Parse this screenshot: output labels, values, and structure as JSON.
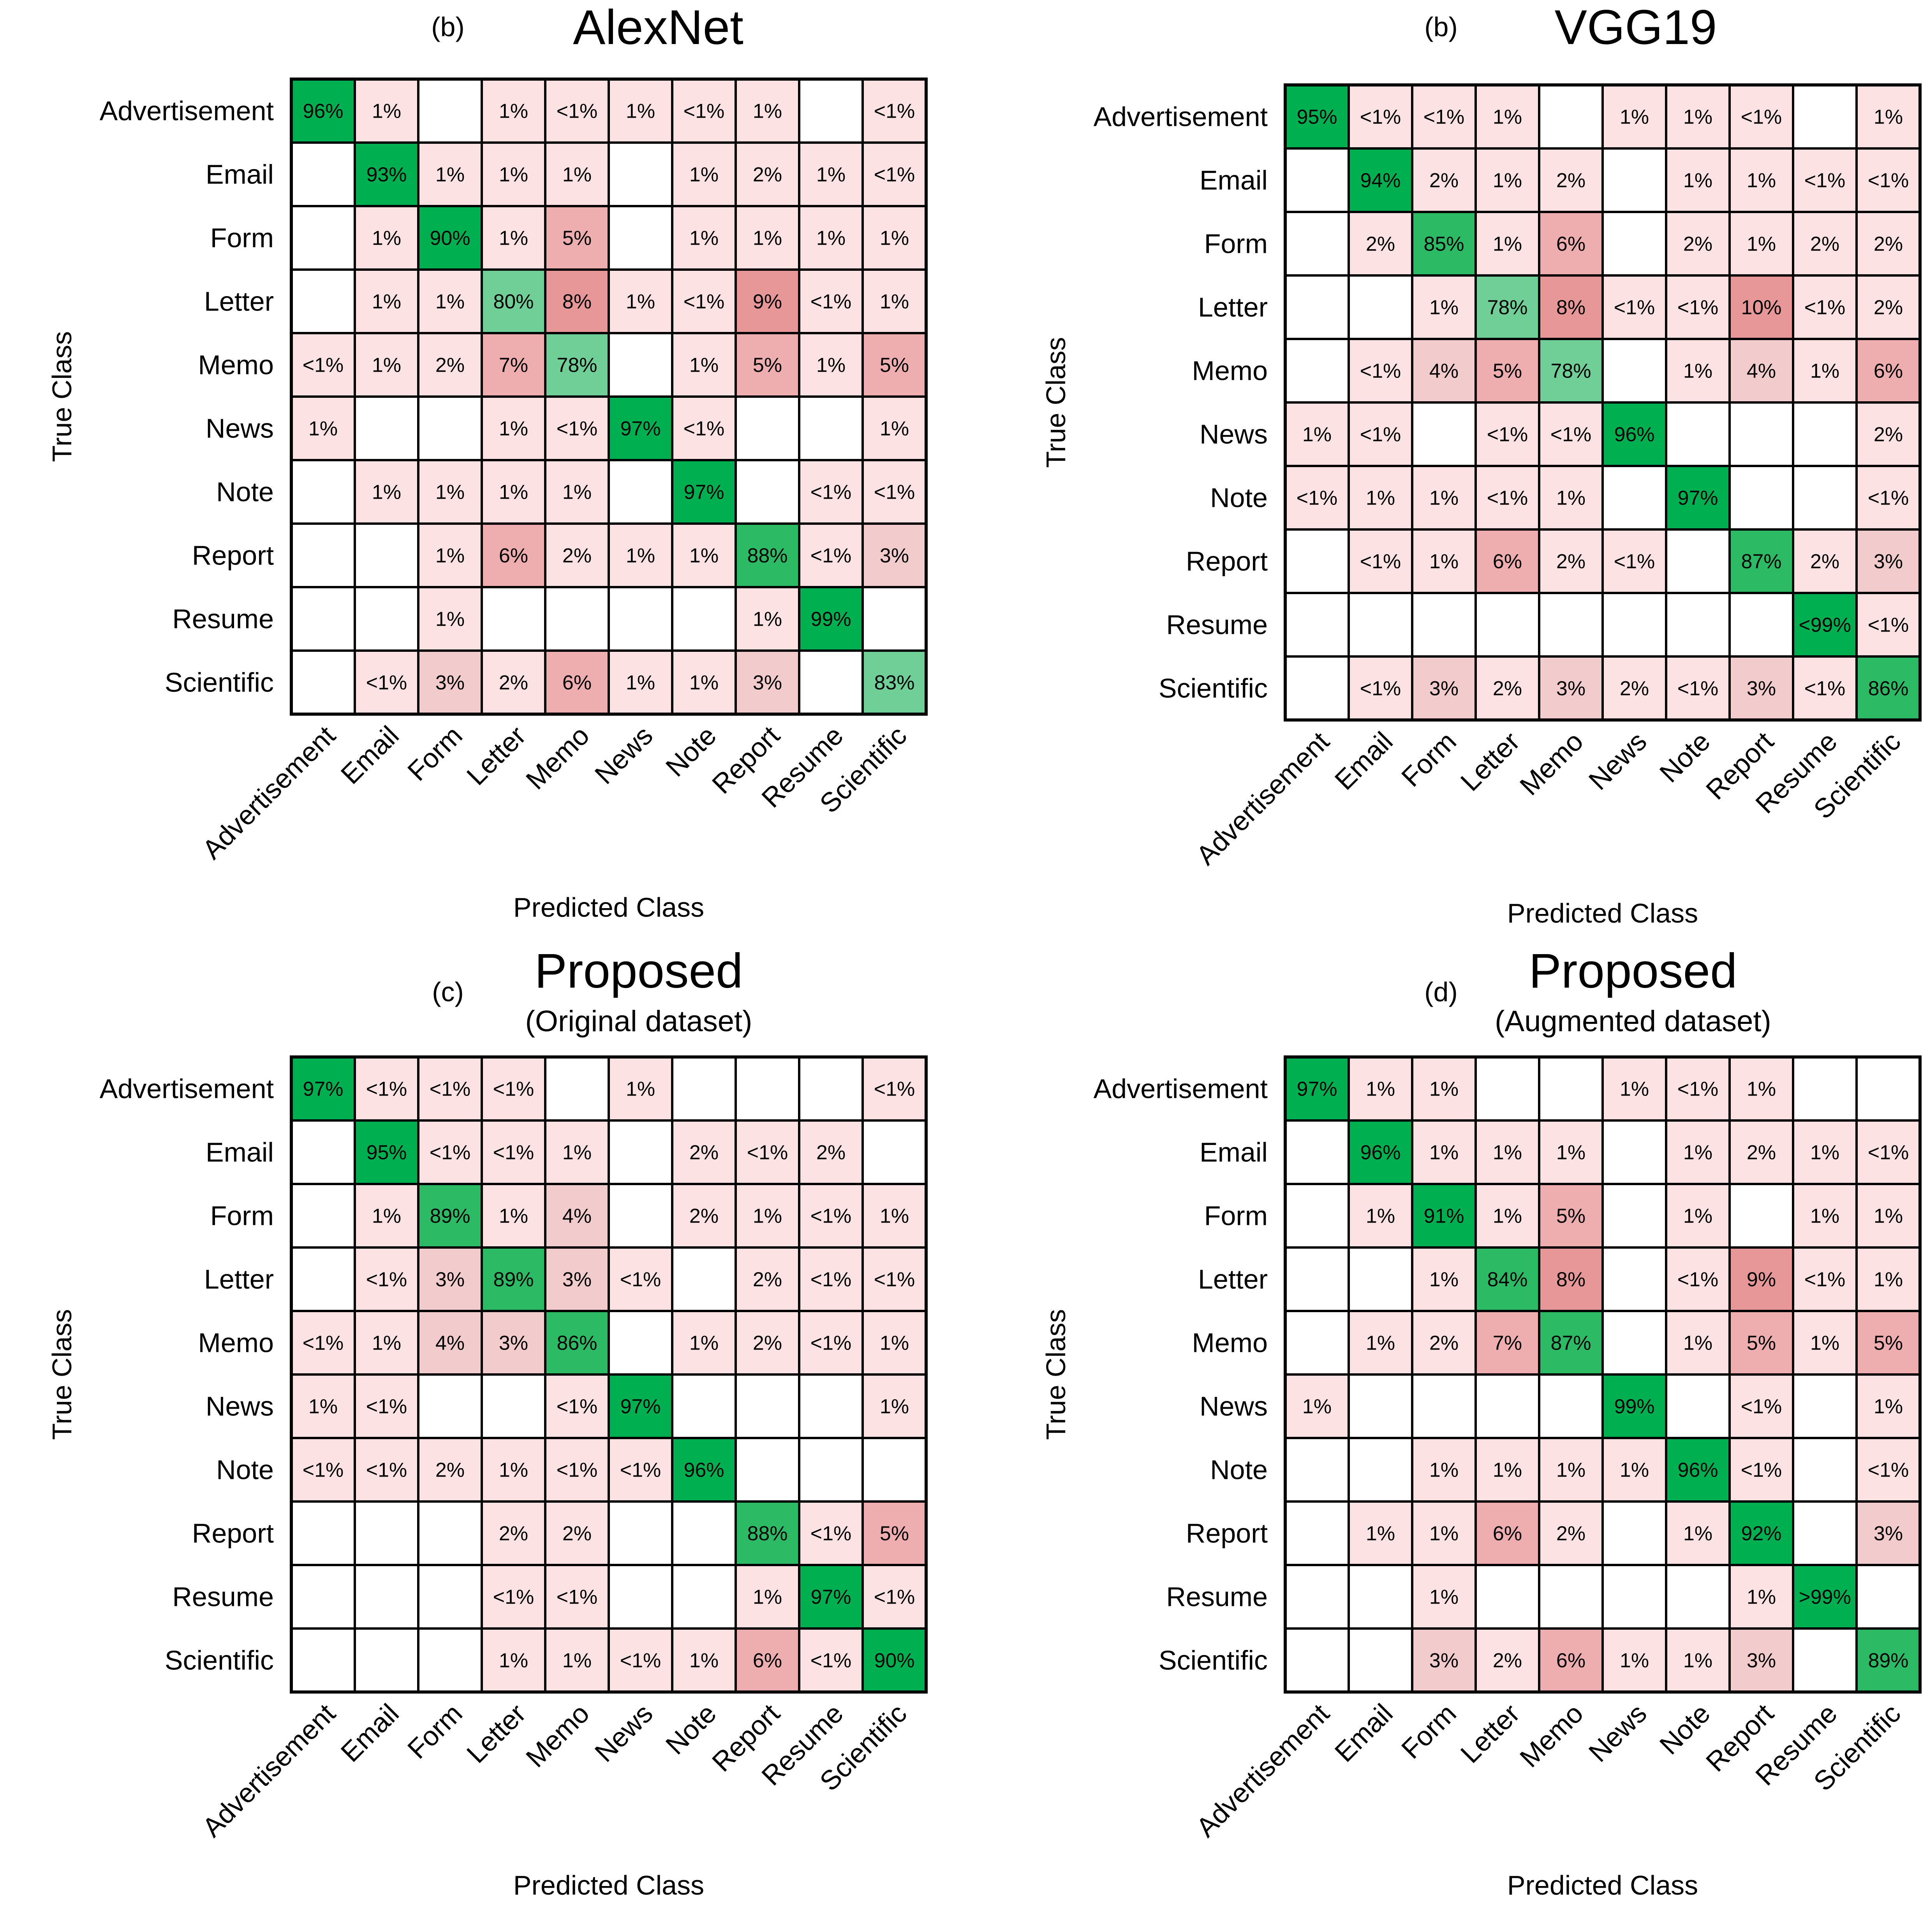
{
  "xlabel": "Predicted Class",
  "ylabel": "True Class",
  "colors": {
    "diag_dark": "#00b050",
    "diag_mid": "#2dba64",
    "diag_light": "#6fcf97",
    "off_light": "#fde2e3",
    "off_pinkgray": "#f2cccc",
    "off_mid": "#eeaeaf",
    "off_strong": "#e89798",
    "grid": "#000000",
    "text": "#000000"
  },
  "chart_data": [
    {
      "type": "heatmap",
      "panel_label": "(b)",
      "title": "AlexNet",
      "subtitle": "",
      "categories": [
        "Advertisement",
        "Email",
        "Form",
        "Letter",
        "Memo",
        "News",
        "Note",
        "Report",
        "Resume",
        "Scientific"
      ],
      "cells": [
        [
          "96%",
          "1%",
          "",
          "1%",
          "<1%",
          "1%",
          "<1%",
          "1%",
          "",
          "<1%"
        ],
        [
          "",
          "93%",
          "1%",
          "1%",
          "1%",
          "",
          "1%",
          "2%",
          "1%",
          "<1%"
        ],
        [
          "",
          "1%",
          "90%",
          "1%",
          "5%",
          "",
          "1%",
          "1%",
          "1%",
          "1%"
        ],
        [
          "",
          "1%",
          "1%",
          "80%",
          "8%",
          "1%",
          "<1%",
          "9%",
          "<1%",
          "1%"
        ],
        [
          "<1%",
          "1%",
          "2%",
          "7%",
          "78%",
          "",
          "1%",
          "5%",
          "1%",
          "5%"
        ],
        [
          "1%",
          "",
          "",
          "1%",
          "<1%",
          "97%",
          "<1%",
          "",
          "",
          "1%"
        ],
        [
          "",
          "1%",
          "1%",
          "1%",
          "1%",
          "",
          "97%",
          "",
          "<1%",
          "<1%"
        ],
        [
          "",
          "",
          "1%",
          "6%",
          "2%",
          "1%",
          "1%",
          "88%",
          "<1%",
          "3%"
        ],
        [
          "",
          "",
          "1%",
          "",
          "",
          "",
          "",
          "1%",
          "99%",
          ""
        ],
        [
          "",
          "<1%",
          "3%",
          "2%",
          "6%",
          "1%",
          "1%",
          "3%",
          "",
          "83%"
        ]
      ]
    },
    {
      "type": "heatmap",
      "panel_label": "(b)",
      "title": "VGG19",
      "subtitle": "",
      "categories": [
        "Advertisement",
        "Email",
        "Form",
        "Letter",
        "Memo",
        "News",
        "Note",
        "Report",
        "Resume",
        "Scientific"
      ],
      "cells": [
        [
          "95%",
          "<1%",
          "<1%",
          "1%",
          "",
          "1%",
          "1%",
          "<1%",
          "",
          "1%"
        ],
        [
          "",
          "94%",
          "2%",
          "1%",
          "2%",
          "",
          "1%",
          "1%",
          "<1%",
          "<1%"
        ],
        [
          "",
          "2%",
          "85%",
          "1%",
          "6%",
          "",
          "2%",
          "1%",
          "2%",
          "2%"
        ],
        [
          "",
          "",
          "1%",
          "78%",
          "8%",
          "<1%",
          "<1%",
          "10%",
          "<1%",
          "2%"
        ],
        [
          "",
          "<1%",
          "4%",
          "5%",
          "78%",
          "",
          "1%",
          "4%",
          "1%",
          "6%"
        ],
        [
          "1%",
          "<1%",
          "",
          "<1%",
          "<1%",
          "96%",
          "",
          "",
          "",
          "2%"
        ],
        [
          "<1%",
          "1%",
          "1%",
          "<1%",
          "1%",
          "",
          "97%",
          "",
          "",
          "<1%"
        ],
        [
          "",
          "<1%",
          "1%",
          "6%",
          "2%",
          "<1%",
          "",
          "87%",
          "2%",
          "3%"
        ],
        [
          "",
          "",
          "",
          "",
          "",
          "",
          "",
          "",
          "<99%",
          "<1%"
        ],
        [
          "",
          "<1%",
          "3%",
          "2%",
          "3%",
          "2%",
          "<1%",
          "3%",
          "<1%",
          "86%"
        ]
      ]
    },
    {
      "type": "heatmap",
      "panel_label": "(c)",
      "title": "Proposed",
      "subtitle": "(Original dataset)",
      "categories": [
        "Advertisement",
        "Email",
        "Form",
        "Letter",
        "Memo",
        "News",
        "Note",
        "Report",
        "Resume",
        "Scientific"
      ],
      "cells": [
        [
          "97%",
          "<1%",
          "<1%",
          "<1%",
          "",
          "1%",
          "",
          "",
          "",
          "<1%"
        ],
        [
          "",
          "95%",
          "<1%",
          "<1%",
          "1%",
          "",
          "2%",
          "<1%",
          "2%",
          ""
        ],
        [
          "",
          "1%",
          "89%",
          "1%",
          "4%",
          "",
          "2%",
          "1%",
          "<1%",
          "1%"
        ],
        [
          "",
          "<1%",
          "3%",
          "89%",
          "3%",
          "<1%",
          "",
          "2%",
          "<1%",
          "<1%"
        ],
        [
          "<1%",
          "1%",
          "4%",
          "3%",
          "86%",
          "",
          "1%",
          "2%",
          "<1%",
          "1%"
        ],
        [
          "1%",
          "<1%",
          "",
          "",
          "<1%",
          "97%",
          "",
          "",
          "",
          "1%"
        ],
        [
          "<1%",
          "<1%",
          "2%",
          "1%",
          "<1%",
          "<1%",
          "96%",
          "",
          "",
          ""
        ],
        [
          "",
          "",
          "",
          "2%",
          "2%",
          "",
          "",
          "88%",
          "<1%",
          "5%"
        ],
        [
          "",
          "",
          "",
          "<1%",
          "<1%",
          "",
          "",
          "1%",
          "97%",
          "<1%"
        ],
        [
          "",
          "",
          "",
          "1%",
          "1%",
          "<1%",
          "1%",
          "6%",
          "<1%",
          "90%"
        ]
      ]
    },
    {
      "type": "heatmap",
      "panel_label": "(d)",
      "title": "Proposed",
      "subtitle": "(Augmented dataset)",
      "categories": [
        "Advertisement",
        "Email",
        "Form",
        "Letter",
        "Memo",
        "News",
        "Note",
        "Report",
        "Resume",
        "Scientific"
      ],
      "cells": [
        [
          "97%",
          "1%",
          "1%",
          "",
          "",
          "1%",
          "<1%",
          "1%",
          "",
          ""
        ],
        [
          "",
          "96%",
          "1%",
          "1%",
          "1%",
          "",
          "1%",
          "2%",
          "1%",
          "<1%"
        ],
        [
          "",
          "1%",
          "91%",
          "1%",
          "5%",
          "",
          "1%",
          "",
          "1%",
          "1%"
        ],
        [
          "",
          "",
          "1%",
          "84%",
          "8%",
          "",
          "<1%",
          "9%",
          "<1%",
          "1%"
        ],
        [
          "",
          "1%",
          "2%",
          "7%",
          "87%",
          "",
          "1%",
          "5%",
          "1%",
          "5%"
        ],
        [
          "1%",
          "",
          "",
          "",
          "",
          "99%",
          "",
          "<1%",
          "",
          "1%"
        ],
        [
          "",
          "",
          "1%",
          "1%",
          "1%",
          "1%",
          "96%",
          "<1%",
          "",
          "<1%"
        ],
        [
          "",
          "1%",
          "1%",
          "6%",
          "2%",
          "",
          "1%",
          "92%",
          "",
          "3%"
        ],
        [
          "",
          "",
          "1%",
          "",
          "",
          "",
          "",
          "1%",
          ">99%",
          ""
        ],
        [
          "",
          "",
          "3%",
          "2%",
          "6%",
          "1%",
          "1%",
          "3%",
          "",
          "89%"
        ]
      ]
    }
  ]
}
